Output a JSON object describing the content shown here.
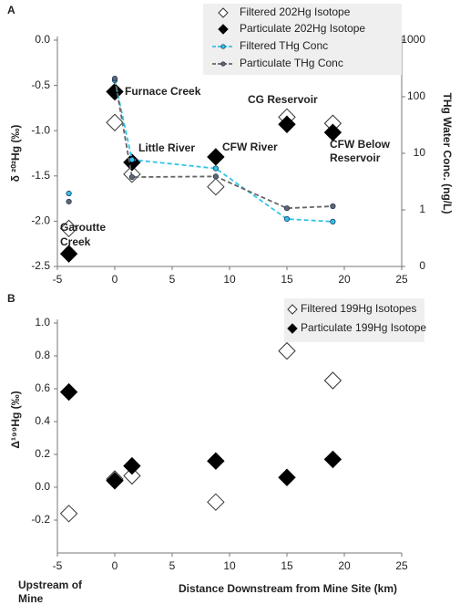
{
  "chart_data": [
    {
      "type": "scatter",
      "panel_label": "A",
      "y_label": "δ ²⁰²Hg (‰)",
      "y2_label": "THg Water Conc. (ng/L)",
      "xlim": [
        -5,
        25
      ],
      "xticks": [
        -5,
        0,
        5,
        10,
        15,
        20,
        25
      ],
      "ylim": [
        -2.5,
        0
      ],
      "yticks": [
        {
          "value": 0,
          "label": "0.0"
        },
        -0.5,
        {
          "value": -1,
          "label": "-1.0"
        },
        -1.5,
        {
          "value": -2,
          "label": "-2.0"
        },
        -2.5
      ],
      "y2lim": [
        0.1,
        1000
      ],
      "y2log": true,
      "y2ticks": [
        {
          "value": 0.1,
          "label": "0"
        },
        1,
        10,
        100,
        1000
      ],
      "legend": "upper right",
      "series": [
        {
          "name": "Filtered 202Hg Isotope",
          "marker": "open-diamond",
          "color": "#333333",
          "x": [
            -4,
            0,
            1.5,
            8.8,
            15,
            19
          ],
          "values": [
            -2.08,
            -0.91,
            -1.48,
            -1.62,
            -0.85,
            -0.92
          ]
        },
        {
          "name": "Particulate 202Hg Isotope",
          "marker": "filled-diamond",
          "color": "#000000",
          "x": [
            -4,
            0,
            1.5,
            8.8,
            15,
            19
          ],
          "values": [
            -2.36,
            -0.57,
            -1.35,
            -1.29,
            -0.93,
            -1.02
          ]
        },
        {
          "name": "Filtered THg Conc",
          "marker": "circle",
          "line": "dashed",
          "color": "#33c3e6",
          "axis": "y2",
          "x": [
            -4,
            null,
            0,
            1.5,
            8.8,
            15,
            19
          ],
          "values": [
            1.95,
            null,
            195,
            7.7,
            5.4,
            0.69,
            0.62
          ]
        },
        {
          "name": "Particulate THg Conc",
          "marker": "circle",
          "line": "dashed",
          "color": "#666666",
          "axis": "y2",
          "x": [
            -4,
            null,
            0,
            1.5,
            8.8,
            15,
            19
          ],
          "values": [
            1.4,
            null,
            209,
            3.8,
            3.9,
            1.07,
            1.16
          ]
        }
      ],
      "annotations": [
        [
          "Furnace Creek"
        ],
        [
          "Little River"
        ],
        [
          "CFW River"
        ],
        [
          "CG Reservoir"
        ],
        [
          "CFW Below",
          "Reservoir"
        ],
        [
          "Garoutte",
          "Creek"
        ]
      ]
    },
    {
      "type": "scatter",
      "panel_label": "B",
      "y_label": "Δ¹⁹⁹Hg (‰)",
      "x_label": "Distance Downstream from Mine Site (km)",
      "xlim": [
        -5,
        25
      ],
      "xticks": [
        -5,
        0,
        5,
        10,
        15,
        20,
        25
      ],
      "ylim": [
        -0.4,
        1.0
      ],
      "yticks": [
        -0.2,
        {
          "value": 0,
          "label": "0.0"
        },
        0.2,
        0.4,
        0.6,
        0.8,
        {
          "value": 1,
          "label": "1.0"
        }
      ],
      "legend": "upper right",
      "series": [
        {
          "name": "Filtered 199Hg Isotopes",
          "marker": "open-diamond",
          "color": "#333333",
          "x": [
            -4,
            0,
            1.5,
            8.8,
            15,
            19
          ],
          "values": [
            -0.16,
            0.05,
            0.07,
            -0.09,
            0.83,
            0.65
          ]
        },
        {
          "name": "Particulate 199Hg Isotope",
          "marker": "filled-diamond",
          "color": "#000000",
          "x": [
            -4,
            0,
            1.5,
            8.8,
            15,
            19
          ],
          "values": [
            0.58,
            0.04,
            0.13,
            0.16,
            0.06,
            0.17
          ]
        }
      ],
      "annotations": [
        [
          "Upstream of",
          "Mine"
        ]
      ]
    }
  ]
}
